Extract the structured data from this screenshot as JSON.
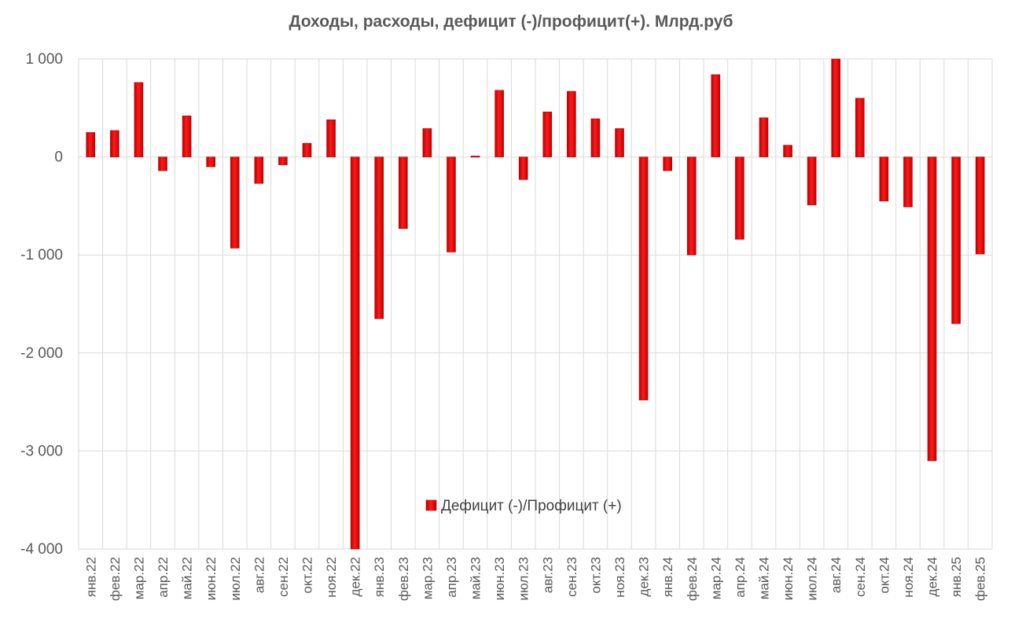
{
  "chart_data": {
    "type": "bar",
    "title": "Доходы, расходы, дефицит (-)/профицит(+). Млрд.руб",
    "xlabel": "",
    "ylabel": "",
    "ylim": [
      -4000,
      1000
    ],
    "yticks": [
      1000,
      0,
      -1000,
      -2000,
      -3000,
      -4000
    ],
    "ytick_labels": [
      "1 000",
      "0",
      "-1 000",
      "-2 000",
      "-3 000",
      "-4 000"
    ],
    "grid": true,
    "legend_position": "center",
    "colors": {
      "bar": "#ff0000",
      "bar_dark": "#b30000",
      "grid": "#d9d9d9",
      "text": "#595959"
    },
    "categories": [
      "янв.22",
      "фев.22",
      "мар.22",
      "апр.22",
      "май.22",
      "июн.22",
      "июл.22",
      "авг.22",
      "сен.22",
      "окт.22",
      "ноя.22",
      "дек.22",
      "янв.23",
      "фев.23",
      "мар.23",
      "апр.23",
      "май.23",
      "июн.23",
      "июл.23",
      "авг.23",
      "сен.23",
      "окт.23",
      "ноя.23",
      "дек.23",
      "янв.24",
      "фев.24",
      "мар.24",
      "апр.24",
      "май.24",
      "июн.24",
      "июл.24",
      "авг.24",
      "сен.24",
      "окт.24",
      "ноя.24",
      "дек.24",
      "янв.25",
      "фев.25"
    ],
    "series": [
      {
        "name": "Дефицит (-)/Профицит (+)",
        "values": [
          250,
          270,
          760,
          -140,
          420,
          -100,
          -930,
          -270,
          -80,
          140,
          380,
          -4000,
          -1650,
          -730,
          290,
          -970,
          10,
          680,
          -230,
          460,
          670,
          390,
          290,
          -2480,
          -140,
          -1000,
          840,
          -840,
          400,
          120,
          -490,
          1030,
          600,
          -450,
          -510,
          -3100,
          -1700,
          -990
        ]
      }
    ]
  }
}
